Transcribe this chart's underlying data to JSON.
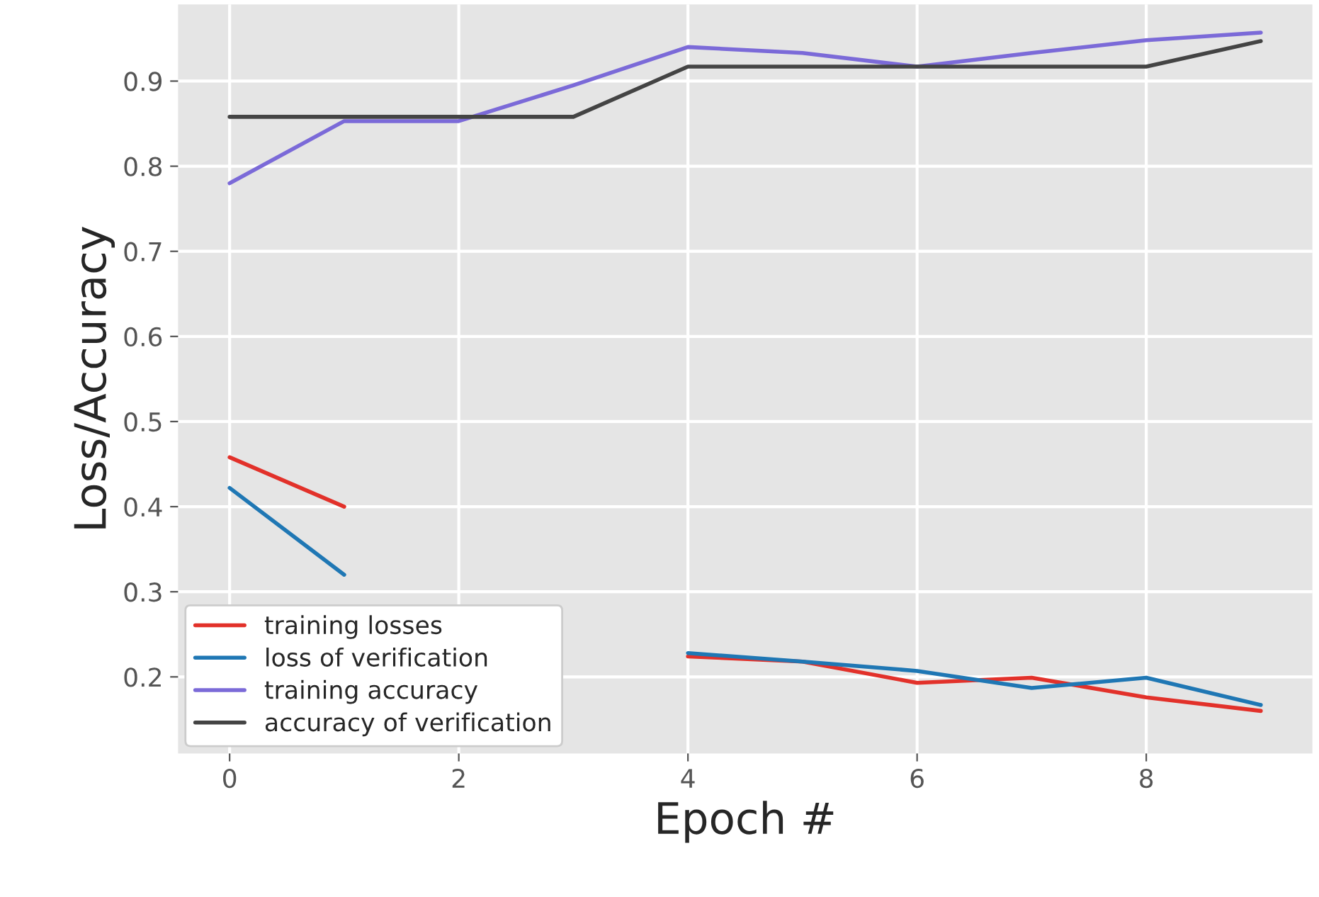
{
  "chart_data": {
    "type": "line",
    "xlabel": "Epoch #",
    "ylabel": "Loss/Accuracy",
    "x": [
      0,
      1,
      2,
      3,
      4,
      5,
      6,
      7,
      8,
      9
    ],
    "series": [
      {
        "name": "training losses",
        "color": "#e2312a",
        "values": [
          0.458,
          0.4,
          null,
          null,
          0.224,
          0.218,
          0.193,
          0.199,
          0.176,
          0.16
        ]
      },
      {
        "name": "loss of verification",
        "color": "#1f77b4",
        "values": [
          0.422,
          0.32,
          null,
          null,
          0.228,
          0.218,
          0.207,
          0.187,
          0.199,
          0.167
        ]
      },
      {
        "name": "training accuracy",
        "color": "#7b6ad8",
        "values": [
          0.78,
          0.853,
          0.853,
          0.895,
          0.94,
          0.933,
          0.917,
          0.933,
          0.948,
          0.957
        ]
      },
      {
        "name": "accuracy of verification",
        "color": "#444444",
        "values": [
          0.858,
          0.858,
          0.858,
          0.858,
          0.917,
          0.917,
          0.917,
          0.917,
          0.917,
          0.947
        ]
      }
    ],
    "xlim": [
      -0.45,
      9.45
    ],
    "ylim": [
      0.11,
      0.99
    ],
    "xticks": [
      0,
      2,
      4,
      6,
      8
    ],
    "yticks": [
      0.2,
      0.3,
      0.4,
      0.5,
      0.6,
      0.7,
      0.8,
      0.9
    ],
    "grid": true,
    "legend": "bottom left",
    "marker": "none",
    "line_style": "solid"
  }
}
